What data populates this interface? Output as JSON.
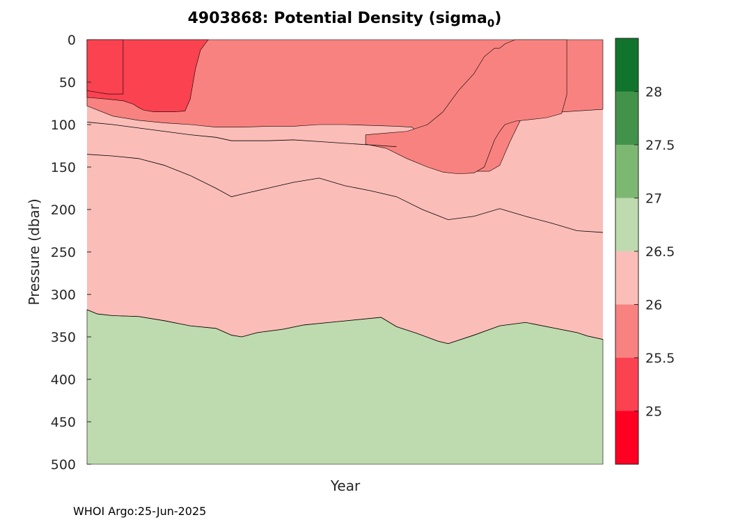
{
  "chart_data": {
    "type": "contourf",
    "title": {
      "prefix": "4903868: Potential Density (sigma",
      "subscript": "0",
      "suffix": ")"
    },
    "xlabel": "Year",
    "ylabel": "Pressure (dbar)",
    "ylim": [
      0,
      500
    ],
    "y_reversed": true,
    "yticks": [
      0,
      50,
      100,
      150,
      200,
      250,
      300,
      350,
      400,
      450,
      500
    ],
    "x_domain": [
      0,
      1
    ],
    "colorbar": {
      "ticks": [
        25,
        25.5,
        26,
        26.5,
        27,
        27.5,
        28
      ],
      "tick_labels": [
        "25",
        "25.5",
        "26",
        "26.5",
        "27",
        "27.5",
        "28"
      ],
      "levels": [
        24.5,
        25,
        25.5,
        26,
        26.5,
        27,
        27.5,
        28,
        28.5
      ],
      "colors": [
        "#ff0022",
        "#fa4250",
        "#f8827f",
        "#fbbdb8",
        "#bddbae",
        "#7db873",
        "#42924a",
        "#11742c"
      ]
    },
    "regions": [
      {
        "name": "sigma-26.5-27-deep",
        "color": "#bddbae",
        "x": [
          0,
          0.02,
          0.05,
          0.1,
          0.15,
          0.2,
          0.25,
          0.28,
          0.3,
          0.33,
          0.38,
          0.42,
          0.47,
          0.52,
          0.57,
          0.6,
          0.64,
          0.68,
          0.7,
          0.75,
          0.8,
          0.85,
          0.9,
          0.95,
          0.97,
          1.0
        ],
        "top": [
          318,
          323,
          325,
          326,
          331,
          337,
          340,
          348,
          350,
          345,
          341,
          336,
          333,
          330,
          327,
          338,
          346,
          355,
          358,
          348,
          337,
          333,
          339,
          345,
          349,
          353
        ]
      },
      {
        "name": "sigma-25.5-26-upper",
        "color": "#f8827f",
        "x": [
          0,
          0.05,
          0.1,
          0.15,
          0.2,
          0.25,
          0.28,
          0.3,
          0.35,
          0.4,
          0.45,
          0.5,
          0.55,
          0.6,
          0.63,
          0.66,
          0.7,
          0.73,
          0.75,
          0.78,
          0.8,
          0.82,
          0.84,
          0.86,
          0.9,
          0.95,
          1.0
        ],
        "top": [
          0,
          0,
          0,
          0,
          0,
          0,
          0,
          0,
          0,
          0,
          0,
          0,
          0,
          0,
          0,
          0,
          0,
          0,
          0,
          0,
          0,
          0,
          0,
          0,
          0,
          0,
          0
        ],
        "bottom": [
          78,
          90,
          95,
          98,
          100,
          103,
          103,
          103,
          102,
          102,
          100,
          100,
          101,
          102,
          103,
          120,
          138,
          150,
          155,
          155,
          148,
          120,
          95,
          88,
          86,
          84,
          82
        ]
      },
      {
        "name": "sigma-25.5-26-lower-lobe",
        "color": "#f8827f",
        "x": [
          0.54,
          0.58,
          0.62,
          0.66,
          0.69,
          0.72,
          0.75,
          0.77,
          0.79,
          0.8,
          0.81,
          0.83,
          0.86,
          0.89,
          0.92,
          0.93
        ],
        "top": [
          112,
          110,
          108,
          100,
          85,
          60,
          40,
          20,
          10,
          10,
          5,
          0,
          0,
          0,
          0,
          0
        ],
        "bottom": [
          123,
          128,
          140,
          150,
          156,
          158,
          157,
          150,
          118,
          108,
          100,
          96,
          94,
          92,
          87,
          65
        ]
      },
      {
        "name": "sigma-25-25.5",
        "color": "#fa4250",
        "x": [
          0,
          0.04,
          0.07,
          0.09,
          0.1,
          0.11,
          0.13,
          0.15,
          0.17,
          0.19,
          0.2,
          0.21,
          0.22,
          0.23,
          0.235
        ],
        "top": [
          0,
          0,
          0,
          0,
          0,
          0,
          0,
          0,
          0,
          0,
          0,
          0,
          0,
          0,
          0
        ],
        "bottom": [
          68,
          70,
          72,
          76,
          80,
          83,
          85,
          85,
          85,
          84,
          70,
          35,
          12,
          4,
          0
        ]
      },
      {
        "name": "sigma-25-25.5-left-edge",
        "color": "#fa4250",
        "x": [
          0,
          0.02,
          0.04,
          0.06,
          0.07
        ],
        "top": [
          0,
          0,
          0,
          0,
          0
        ],
        "bottom": [
          60,
          62,
          64,
          64,
          64
        ]
      }
    ],
    "contours": [
      {
        "level": 26.5,
        "x": [
          0,
          0.02,
          0.05,
          0.1,
          0.15,
          0.2,
          0.25,
          0.28,
          0.3,
          0.33,
          0.38,
          0.42,
          0.47,
          0.52,
          0.57,
          0.6,
          0.64,
          0.68,
          0.7,
          0.75,
          0.8,
          0.85,
          0.9,
          0.95,
          0.97,
          1.0
        ],
        "y": [
          318,
          323,
          325,
          326,
          331,
          337,
          340,
          348,
          350,
          345,
          341,
          336,
          333,
          330,
          327,
          338,
          346,
          355,
          358,
          348,
          337,
          333,
          339,
          345,
          349,
          353
        ]
      },
      {
        "level": 26.0,
        "x": [
          0,
          0.05,
          0.1,
          0.15,
          0.2,
          0.25,
          0.28,
          0.3,
          0.35,
          0.4,
          0.45,
          0.5,
          0.55,
          0.6,
          0.65,
          0.7,
          0.75,
          0.8,
          0.85,
          0.9,
          0.95,
          1.0
        ],
        "y": [
          135,
          137,
          140,
          148,
          160,
          175,
          185,
          182,
          175,
          168,
          163,
          172,
          178,
          185,
          200,
          212,
          208,
          199,
          208,
          216,
          225,
          227
        ]
      },
      {
        "level": 26.0,
        "x": [
          0,
          0.05,
          0.1,
          0.15,
          0.2,
          0.25,
          0.28,
          0.3,
          0.35,
          0.4,
          0.45,
          0.5,
          0.55,
          0.6
        ],
        "y": [
          97,
          100,
          104,
          108,
          112,
          115,
          119,
          119,
          119,
          118,
          120,
          122,
          124,
          126
        ]
      }
    ]
  },
  "footer": {
    "text": "WHOI Argo:25-Jun-2025"
  }
}
